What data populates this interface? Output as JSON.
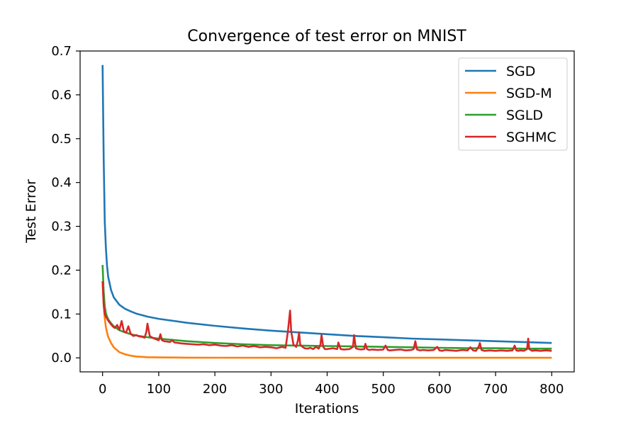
{
  "chart_data": {
    "type": "line",
    "title": "Convergence of test error on MNIST",
    "xlabel": "Iterations",
    "ylabel": "Test Error",
    "xlim": [
      -40,
      840
    ],
    "ylim": [
      -0.032,
      0.7
    ],
    "xticks": [
      0,
      100,
      200,
      300,
      400,
      500,
      600,
      700,
      800
    ],
    "yticks": [
      0.0,
      0.1,
      0.2,
      0.3,
      0.4,
      0.5,
      0.6,
      0.7
    ],
    "xtick_labels": [
      "0",
      "100",
      "200",
      "300",
      "400",
      "500",
      "600",
      "700",
      "800"
    ],
    "ytick_labels": [
      "0.0",
      "0.1",
      "0.2",
      "0.3",
      "0.4",
      "0.5",
      "0.6",
      "0.7"
    ],
    "grid": false,
    "legend_position": "top-right",
    "series": [
      {
        "name": "SGD",
        "color": "#1f77b4",
        "x": [
          0,
          2,
          4,
          6,
          8,
          10,
          15,
          20,
          30,
          40,
          50,
          60,
          80,
          100,
          150,
          200,
          250,
          300,
          350,
          400,
          450,
          500,
          550,
          600,
          650,
          700,
          750,
          800
        ],
        "y": [
          0.668,
          0.45,
          0.31,
          0.25,
          0.21,
          0.185,
          0.155,
          0.138,
          0.121,
          0.112,
          0.106,
          0.101,
          0.094,
          0.089,
          0.08,
          0.073,
          0.067,
          0.062,
          0.058,
          0.054,
          0.05,
          0.047,
          0.044,
          0.042,
          0.04,
          0.038,
          0.036,
          0.034
        ]
      },
      {
        "name": "SGD-M",
        "color": "#ff7f0e",
        "x": [
          0,
          2,
          4,
          6,
          8,
          10,
          15,
          20,
          30,
          40,
          50,
          60,
          80,
          100,
          150,
          200,
          300,
          400,
          500,
          600,
          700,
          800
        ],
        "y": [
          0.175,
          0.12,
          0.09,
          0.07,
          0.058,
          0.048,
          0.034,
          0.024,
          0.013,
          0.008,
          0.005,
          0.003,
          0.0015,
          0.001,
          0.0005,
          0.0003,
          0.0002,
          0.0002,
          0.0002,
          0.0002,
          0.0002,
          0.0002
        ]
      },
      {
        "name": "SGLD",
        "color": "#2ca02c",
        "x": [
          0,
          2,
          4,
          6,
          8,
          10,
          15,
          20,
          30,
          40,
          50,
          60,
          80,
          100,
          150,
          200,
          250,
          300,
          350,
          400,
          450,
          500,
          550,
          600,
          650,
          700,
          750,
          800
        ],
        "y": [
          0.212,
          0.15,
          0.118,
          0.102,
          0.094,
          0.088,
          0.079,
          0.072,
          0.063,
          0.058,
          0.054,
          0.051,
          0.047,
          0.044,
          0.038,
          0.034,
          0.031,
          0.029,
          0.028,
          0.027,
          0.026,
          0.025,
          0.024,
          0.023,
          0.022,
          0.022,
          0.021,
          0.021
        ]
      },
      {
        "name": "SGHMC",
        "color": "#d62728",
        "x": [
          0,
          2,
          4,
          6,
          8,
          10,
          14,
          18,
          22,
          26,
          30,
          34,
          38,
          42,
          46,
          50,
          55,
          60,
          65,
          70,
          75,
          78,
          80,
          84,
          90,
          96,
          100,
          103,
          106,
          110,
          116,
          120,
          124,
          128,
          135,
          140,
          150,
          160,
          170,
          180,
          190,
          200,
          210,
          220,
          230,
          240,
          250,
          260,
          270,
          280,
          290,
          300,
          310,
          320,
          326,
          330,
          334,
          336,
          340,
          345,
          348,
          350,
          352,
          356,
          360,
          365,
          370,
          375,
          380,
          385,
          388,
          390,
          393,
          396,
          400,
          410,
          418,
          420,
          424,
          430,
          440,
          446,
          448,
          451,
          455,
          460,
          466,
          468,
          471,
          475,
          480,
          490,
          500,
          504,
          508,
          512,
          520,
          530,
          540,
          550,
          554,
          557,
          560,
          565,
          570,
          580,
          590,
          596,
          600,
          605,
          610,
          620,
          630,
          640,
          650,
          655,
          660,
          665,
          670,
          672,
          675,
          680,
          690,
          700,
          710,
          720,
          730,
          734,
          737,
          740,
          745,
          750,
          756,
          758,
          760,
          765,
          770,
          780,
          790,
          800
        ],
        "y": [
          0.175,
          0.12,
          0.1,
          0.094,
          0.09,
          0.085,
          0.078,
          0.072,
          0.068,
          0.075,
          0.064,
          0.084,
          0.06,
          0.058,
          0.072,
          0.055,
          0.05,
          0.052,
          0.049,
          0.048,
          0.046,
          0.06,
          0.078,
          0.05,
          0.045,
          0.042,
          0.04,
          0.054,
          0.04,
          0.038,
          0.037,
          0.036,
          0.04,
          0.035,
          0.034,
          0.033,
          0.032,
          0.031,
          0.03,
          0.031,
          0.029,
          0.03,
          0.028,
          0.027,
          0.029,
          0.026,
          0.028,
          0.025,
          0.027,
          0.024,
          0.025,
          0.024,
          0.022,
          0.025,
          0.023,
          0.06,
          0.108,
          0.06,
          0.03,
          0.025,
          0.04,
          0.058,
          0.03,
          0.025,
          0.022,
          0.021,
          0.023,
          0.02,
          0.025,
          0.021,
          0.03,
          0.052,
          0.025,
          0.02,
          0.02,
          0.022,
          0.02,
          0.035,
          0.02,
          0.019,
          0.02,
          0.025,
          0.052,
          0.022,
          0.02,
          0.019,
          0.02,
          0.032,
          0.02,
          0.018,
          0.019,
          0.018,
          0.019,
          0.028,
          0.018,
          0.017,
          0.018,
          0.019,
          0.017,
          0.018,
          0.02,
          0.038,
          0.019,
          0.017,
          0.018,
          0.017,
          0.018,
          0.025,
          0.017,
          0.016,
          0.018,
          0.017,
          0.016,
          0.018,
          0.017,
          0.024,
          0.017,
          0.016,
          0.026,
          0.034,
          0.018,
          0.016,
          0.017,
          0.016,
          0.017,
          0.016,
          0.017,
          0.028,
          0.017,
          0.016,
          0.017,
          0.016,
          0.02,
          0.044,
          0.02,
          0.016,
          0.017,
          0.016,
          0.017,
          0.016
        ]
      }
    ]
  }
}
